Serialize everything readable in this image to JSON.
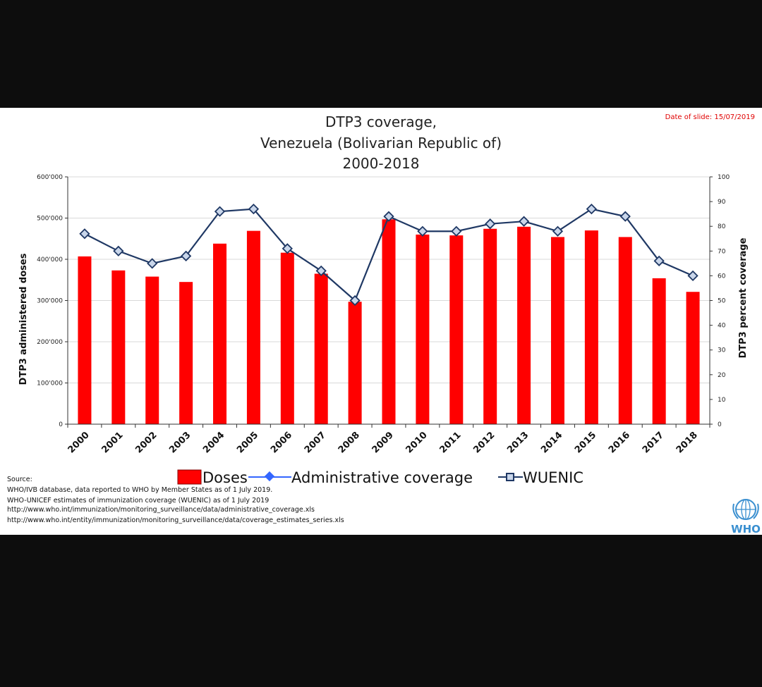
{
  "date_label": "Date of slide: 15/07/2019",
  "title_lines": [
    "DTP3 coverage,",
    "Venezuela (Bolivarian Republic of)",
    "2000-2018"
  ],
  "legend": {
    "doses": "Doses",
    "admin": "Administrative coverage",
    "wuenic": "WUENIC"
  },
  "source_lines": [
    "Source:",
    "WHO/IVB database, data reported to WHO by Member States as of 1 July 2019.",
    "WHO-UNICEF estimates of immunization coverage (WUENIC) as of 1 July 2019",
    "http://www.who.int/immunization/monitoring_surveillance/data/administrative_coverage.xls",
    "http://www.who.int/entity/immunization/monitoring_surveillance/data/coverage_estimates_series.xls"
  ],
  "logo_text": "WHO",
  "colors": {
    "bar": "#ff0000",
    "line": "#1f3864",
    "admin": "#3366ff",
    "marker_fill": "#c9d6ea",
    "date": "#e00000"
  },
  "chart_data": {
    "type": "bar",
    "categories": [
      "2000",
      "2001",
      "2002",
      "2003",
      "2004",
      "2005",
      "2006",
      "2007",
      "2008",
      "2009",
      "2010",
      "2011",
      "2012",
      "2013",
      "2014",
      "2015",
      "2016",
      "2017",
      "2018"
    ],
    "series": [
      {
        "name": "Doses",
        "type": "bar",
        "axis": "left",
        "values": [
          407000,
          373000,
          358000,
          345000,
          438000,
          469000,
          416000,
          365000,
          297000,
          497000,
          460000,
          458000,
          474000,
          479000,
          454000,
          470000,
          454000,
          354000,
          321000
        ]
      },
      {
        "name": "WUENIC",
        "type": "line",
        "axis": "right",
        "values": [
          77,
          70,
          65,
          68,
          86,
          87,
          71,
          62,
          50,
          84,
          78,
          78,
          81,
          82,
          78,
          87,
          84,
          66,
          60
        ]
      }
    ],
    "ylabel": "DTP3 administered doses",
    "ylabel_right": "DTP3 percent coverage",
    "ylim": [
      0,
      600000
    ],
    "ylim_right": [
      0,
      100
    ],
    "yticks": [
      "0",
      "100'000",
      "200'000",
      "300'000",
      "400'000",
      "500'000",
      "600'000"
    ],
    "yticks_right": [
      "0",
      "10",
      "20",
      "30",
      "40",
      "50",
      "60",
      "70",
      "80",
      "90",
      "100"
    ],
    "legend_position": "bottom"
  }
}
